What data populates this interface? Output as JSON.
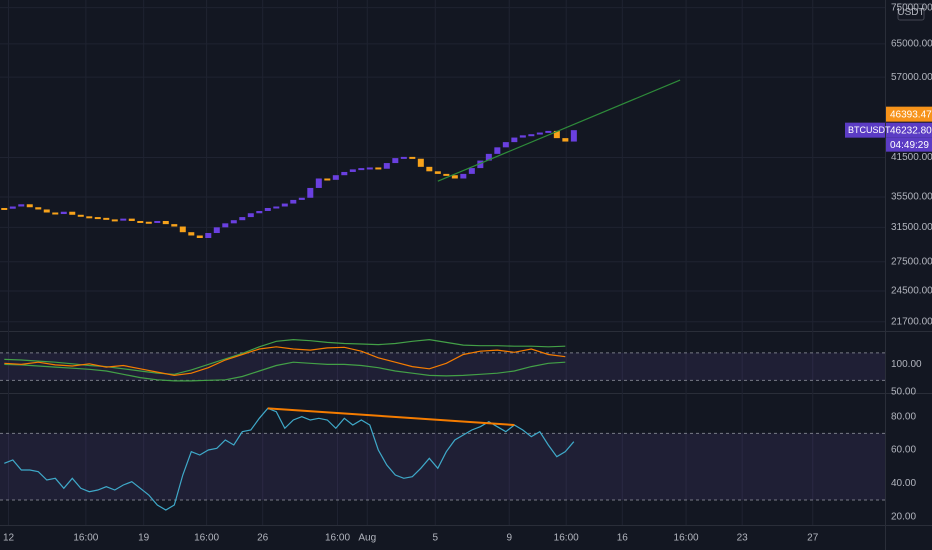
{
  "chart_data": [
    {
      "type": "candlestick",
      "symbol": "BTCUSDT",
      "currency": "USDT",
      "countdown": "04:49:29",
      "up_color": "#6a40e0",
      "down_color": "#f7a21b",
      "log": true,
      "grid": true,
      "open": [
        34000,
        33900,
        34200,
        34500,
        34100,
        33800,
        33400,
        33200,
        33500,
        33100,
        32900,
        32800,
        32700,
        32500,
        32400,
        32600,
        32300,
        32200,
        32100,
        32300,
        31900,
        31600,
        30900,
        30500,
        30200,
        30800,
        31500,
        32000,
        32400,
        32800,
        33300,
        33600,
        34000,
        34200,
        34600,
        35100,
        35400,
        36800,
        38200,
        38000,
        38700,
        39200,
        39600,
        39800,
        39900,
        39700,
        40600,
        41400,
        41600,
        41300,
        40000,
        39300,
        38900,
        38700,
        38200,
        38900,
        39800,
        41000,
        42100,
        43200,
        44100,
        44900,
        45300,
        45500,
        45800,
        46100,
        44800,
        44200
      ],
      "close": [
        33900,
        34200,
        34500,
        34100,
        33800,
        33400,
        33200,
        33500,
        33100,
        32900,
        32800,
        32700,
        32500,
        32400,
        32600,
        32300,
        32200,
        32100,
        32300,
        31900,
        31600,
        30900,
        30500,
        30200,
        30800,
        31500,
        32000,
        32400,
        32800,
        33300,
        33600,
        34000,
        34200,
        34600,
        35100,
        35400,
        36800,
        38200,
        38000,
        38700,
        39200,
        39600,
        39800,
        39900,
        39700,
        40600,
        41400,
        41600,
        41300,
        40000,
        39300,
        38900,
        38700,
        38200,
        38900,
        39800,
        41000,
        42100,
        43200,
        44100,
        44900,
        45300,
        45500,
        45800,
        46100,
        44800,
        44200,
        46232.8
      ],
      "ylim": [
        21000,
        77300
      ],
      "yticks": [
        {
          "value": 75000,
          "label": "75000.00"
        },
        {
          "value": 65000,
          "label": "65000.00"
        },
        {
          "value": 57000,
          "label": "57000.00"
        },
        {
          "value": 41500,
          "label": "41500.00"
        },
        {
          "value": 35500,
          "label": "35500.00"
        },
        {
          "value": 31500,
          "label": "31500.00"
        },
        {
          "value": 27500,
          "label": "27500.00"
        },
        {
          "value": 24500,
          "label": "24500.00"
        },
        {
          "value": 21700,
          "label": "21700.00"
        }
      ],
      "xlim": [
        -0.5,
        103.6
      ],
      "xticks": [
        {
          "value": 0.5,
          "label": "12"
        },
        {
          "value": 9.6,
          "label": "16:00"
        },
        {
          "value": 16.4,
          "label": "19"
        },
        {
          "value": 23.8,
          "label": "16:00"
        },
        {
          "value": 30.4,
          "label": "26"
        },
        {
          "value": 39.2,
          "label": "16:00"
        },
        {
          "value": 42.7,
          "label": "Aug"
        },
        {
          "value": 50.7,
          "label": "5"
        },
        {
          "value": 59.4,
          "label": "9"
        },
        {
          "value": 66.1,
          "label": "16:00"
        },
        {
          "value": 72.7,
          "label": "16"
        },
        {
          "value": 80.2,
          "label": "16:00"
        },
        {
          "value": 86.8,
          "label": "23"
        },
        {
          "value": 95.1,
          "label": "27"
        }
      ],
      "trendline": {
        "x": [
          51,
          79.5
        ],
        "values": [
          37800,
          56350
        ],
        "color": "#2e8b3a"
      },
      "price_labels": [
        {
          "value": 46393.47,
          "label": "46393.47",
          "color": "#f7931a"
        },
        {
          "value": 46232.8,
          "label": "46232.80",
          "color": "#5b3cc4"
        }
      ]
    },
    {
      "type": "line",
      "x": [
        0,
        2,
        4,
        6,
        8,
        10,
        12,
        14,
        16,
        18,
        20,
        22,
        24,
        26,
        28,
        30,
        32,
        34,
        36,
        38,
        40,
        42,
        44,
        46,
        48,
        50,
        52,
        54,
        56,
        58,
        60,
        62,
        64,
        66
      ],
      "series": [
        {
          "color": "#43a047",
          "values": [
            109,
            108,
            106,
            104,
            101,
            98,
            96,
            92,
            88,
            84,
            82,
            90,
            100,
            110,
            120,
            132,
            142,
            145,
            143,
            140,
            138,
            137,
            136,
            138,
            142,
            145,
            140,
            135,
            134,
            134,
            133,
            133,
            132,
            133
          ]
        },
        {
          "color": "#43a047",
          "values": [
            100,
            99,
            97,
            95,
            93,
            91,
            88,
            82,
            76,
            72,
            70,
            70,
            71,
            72,
            78,
            88,
            98,
            104,
            102,
            100,
            100,
            98,
            94,
            88,
            84,
            80,
            79,
            80,
            82,
            84,
            88,
            96,
            102,
            104
          ]
        },
        {
          "color": "#f57c00",
          "values": [
            102,
            100,
            104,
            99,
            97,
            101,
            95,
            98,
            92,
            86,
            80,
            84,
            94,
            108,
            118,
            128,
            132,
            128,
            126,
            130,
            131,
            124,
            112,
            104,
            96,
            92,
            102,
            118,
            124,
            126,
            122,
            128,
            118,
            114
          ]
        }
      ],
      "ylim": [
        48,
        157
      ],
      "yticks": [
        {
          "value": 100,
          "label": "100.00"
        },
        {
          "value": 50,
          "label": "50.00"
        }
      ],
      "band": [
        71,
        121
      ],
      "band_color": "#7e57c2"
    },
    {
      "type": "line",
      "color": "#3fa9c9",
      "values": [
        52,
        54,
        48,
        48,
        47,
        42,
        43,
        37,
        43,
        37,
        35,
        36,
        38,
        36,
        39,
        41,
        37,
        33,
        27,
        24,
        27,
        45,
        59,
        57,
        60,
        61,
        66,
        63,
        71,
        72,
        79,
        85,
        83,
        73,
        78,
        80,
        78,
        79,
        78,
        73,
        79,
        75,
        78,
        75,
        60,
        51,
        45,
        43,
        44,
        49,
        55,
        49,
        59,
        66,
        69,
        72,
        74,
        77,
        74,
        71,
        75,
        72,
        68,
        71,
        63,
        56,
        59,
        65
      ],
      "ylim": [
        15,
        93
      ],
      "yticks": [
        {
          "value": 80,
          "label": "80.00"
        },
        {
          "value": 60,
          "label": "60.00"
        },
        {
          "value": 40,
          "label": "40.00"
        },
        {
          "value": 20,
          "label": "20.00"
        }
      ],
      "band": [
        30,
        70
      ],
      "band_color": "#7e57c2",
      "trendline": {
        "x": [
          31,
          60
        ],
        "values": [
          85,
          75
        ],
        "color": "#f57c00"
      }
    }
  ]
}
